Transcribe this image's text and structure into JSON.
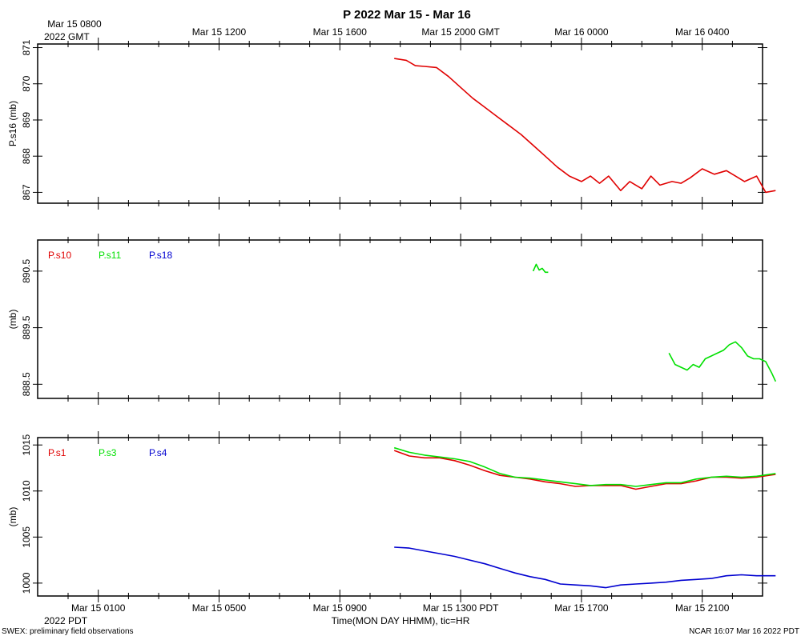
{
  "title": "P 2022 Mar 15 - Mar 16",
  "top_axis": {
    "year_label": "2022 GMT",
    "ticks": [
      "Mar 15 0800",
      "Mar 15 1200",
      "Mar 15 1600",
      "Mar 15 2000 GMT",
      "Mar 16 0000",
      "Mar 16 0400"
    ]
  },
  "bottom_axis": {
    "year_label": "2022 PDT",
    "xlabel": "Time(MON DAY HHMM), tic=HR",
    "ticks": [
      "Mar 15 0100",
      "Mar 15 0500",
      "Mar 15 0900",
      "Mar 15 1300 PDT",
      "Mar 15 1700",
      "Mar 15 2100"
    ]
  },
  "footer": {
    "left": "SWEX: preliminary field observations",
    "right": "NCAR 16:07 Mar 16 2022 PDT"
  },
  "colors": {
    "red": "#e00000",
    "green": "#00e000",
    "blue": "#0000d0"
  },
  "chart_data": [
    {
      "type": "line",
      "ylabel": "P.s16 (mb)",
      "ylim": [
        866.7,
        871.1
      ],
      "yticks": [
        "871",
        "870",
        "869",
        "868",
        "867"
      ],
      "ytick_values": [
        871,
        870,
        869,
        868,
        867
      ],
      "x_unit": "hours since Mar 15 0000 PDT (tick at every hour)",
      "xlim": [
        -0.93,
        23.43
      ],
      "legend": [],
      "series": [
        {
          "name": "P.s16",
          "color": "red",
          "x": [
            10.8,
            11.2,
            11.5,
            11.8,
            12.2,
            12.6,
            13.0,
            13.4,
            13.8,
            14.2,
            14.6,
            15.0,
            15.4,
            15.8,
            16.2,
            16.6,
            17.0,
            17.3,
            17.6,
            17.9,
            18.3,
            18.6,
            19.0,
            19.3,
            19.6,
            20.0,
            20.3,
            20.6,
            21.0,
            21.4,
            21.8,
            22.1,
            22.4,
            22.8,
            23.1,
            23.43
          ],
          "y": [
            870.7,
            870.65,
            870.5,
            870.48,
            870.45,
            870.2,
            869.9,
            869.6,
            869.35,
            869.1,
            868.85,
            868.6,
            868.3,
            868.0,
            867.7,
            867.45,
            867.3,
            867.45,
            867.25,
            867.45,
            867.05,
            867.3,
            867.1,
            867.45,
            867.2,
            867.3,
            867.25,
            867.4,
            867.65,
            867.5,
            867.6,
            867.45,
            867.3,
            867.45,
            867.0,
            867.05
          ]
        }
      ]
    },
    {
      "type": "line",
      "ylabel": "(mb)",
      "ylim": [
        888.25,
        891.05
      ],
      "yticks": [
        "890.5",
        "889.5",
        "888.5"
      ],
      "ytick_values": [
        890.5,
        889.5,
        888.5
      ],
      "x_unit": "hours since Mar 15 0000 PDT (tick at every hour)",
      "xlim": [
        -0.93,
        23.43
      ],
      "legend": [
        {
          "label": "P.s10",
          "color": "red"
        },
        {
          "label": "P.s11",
          "color": "green"
        },
        {
          "label": "P.s18",
          "color": "blue"
        }
      ],
      "series": [
        {
          "name": "P.s11",
          "color": "green",
          "x": [
            15.4,
            15.5,
            15.6,
            15.7,
            15.8,
            15.9
          ],
          "y": [
            890.5,
            890.62,
            890.52,
            890.55,
            890.48,
            890.48
          ]
        },
        {
          "name": "P.s11",
          "color": "green",
          "x": [
            19.9,
            20.1,
            20.3,
            20.5,
            20.7,
            20.9,
            21.1,
            21.3,
            21.5,
            21.7,
            21.9,
            22.1,
            22.3,
            22.5,
            22.7,
            22.9,
            23.1,
            23.3,
            23.43
          ],
          "y": [
            889.05,
            888.85,
            888.8,
            888.75,
            888.85,
            888.8,
            888.95,
            889.0,
            889.05,
            889.1,
            889.2,
            889.25,
            889.15,
            889.0,
            888.95,
            888.95,
            888.9,
            888.7,
            888.55
          ]
        }
      ]
    },
    {
      "type": "line",
      "ylabel": "(mb)",
      "ylim": [
        998.6,
        1015.8
      ],
      "yticks": [
        "1015",
        "1010",
        "1005",
        "1000"
      ],
      "ytick_values": [
        1015,
        1010,
        1005,
        1000
      ],
      "x_unit": "hours since Mar 15 0000 PDT (tick at every hour)",
      "xlim": [
        -0.93,
        23.43
      ],
      "legend": [
        {
          "label": "P.s1",
          "color": "red"
        },
        {
          "label": "P.s3",
          "color": "green"
        },
        {
          "label": "P.s4",
          "color": "blue"
        }
      ],
      "series": [
        {
          "name": "P.s1",
          "color": "red",
          "x": [
            10.8,
            11.3,
            11.8,
            12.3,
            12.8,
            13.3,
            13.8,
            14.3,
            14.8,
            15.3,
            15.8,
            16.3,
            16.8,
            17.3,
            17.8,
            18.3,
            18.8,
            19.3,
            19.8,
            20.3,
            20.8,
            21.3,
            21.8,
            22.3,
            22.8,
            23.43
          ],
          "y": [
            1014.4,
            1013.8,
            1013.6,
            1013.6,
            1013.3,
            1012.8,
            1012.2,
            1011.7,
            1011.5,
            1011.3,
            1011.0,
            1010.8,
            1010.5,
            1010.6,
            1010.6,
            1010.6,
            1010.2,
            1010.5,
            1010.8,
            1010.8,
            1011.1,
            1011.5,
            1011.5,
            1011.4,
            1011.5,
            1011.8
          ]
        },
        {
          "name": "P.s3",
          "color": "green",
          "x": [
            10.8,
            11.3,
            11.8,
            12.3,
            12.8,
            13.3,
            13.8,
            14.3,
            14.8,
            15.3,
            15.8,
            16.3,
            16.8,
            17.3,
            17.8,
            18.3,
            18.8,
            19.3,
            19.8,
            20.3,
            20.8,
            21.3,
            21.8,
            22.3,
            22.8,
            23.43
          ],
          "y": [
            1014.7,
            1014.2,
            1013.9,
            1013.7,
            1013.5,
            1013.2,
            1012.6,
            1011.9,
            1011.5,
            1011.4,
            1011.2,
            1011.0,
            1010.8,
            1010.6,
            1010.7,
            1010.7,
            1010.5,
            1010.7,
            1010.9,
            1010.9,
            1011.3,
            1011.5,
            1011.6,
            1011.5,
            1011.6,
            1011.9
          ]
        },
        {
          "name": "P.s4",
          "color": "blue",
          "x": [
            10.8,
            11.3,
            11.8,
            12.3,
            12.8,
            13.3,
            13.8,
            14.3,
            14.8,
            15.3,
            15.8,
            16.3,
            16.8,
            17.3,
            17.8,
            18.3,
            18.8,
            19.3,
            19.8,
            20.3,
            20.8,
            21.3,
            21.8,
            22.3,
            22.8,
            23.43
          ],
          "y": [
            1003.9,
            1003.8,
            1003.5,
            1003.2,
            1002.9,
            1002.5,
            1002.1,
            1001.6,
            1001.1,
            1000.7,
            1000.4,
            999.9,
            999.8,
            999.7,
            999.5,
            999.8,
            999.9,
            1000.0,
            1000.1,
            1000.3,
            1000.4,
            1000.5,
            1000.8,
            1000.9,
            1000.8,
            1000.8
          ]
        }
      ]
    }
  ]
}
